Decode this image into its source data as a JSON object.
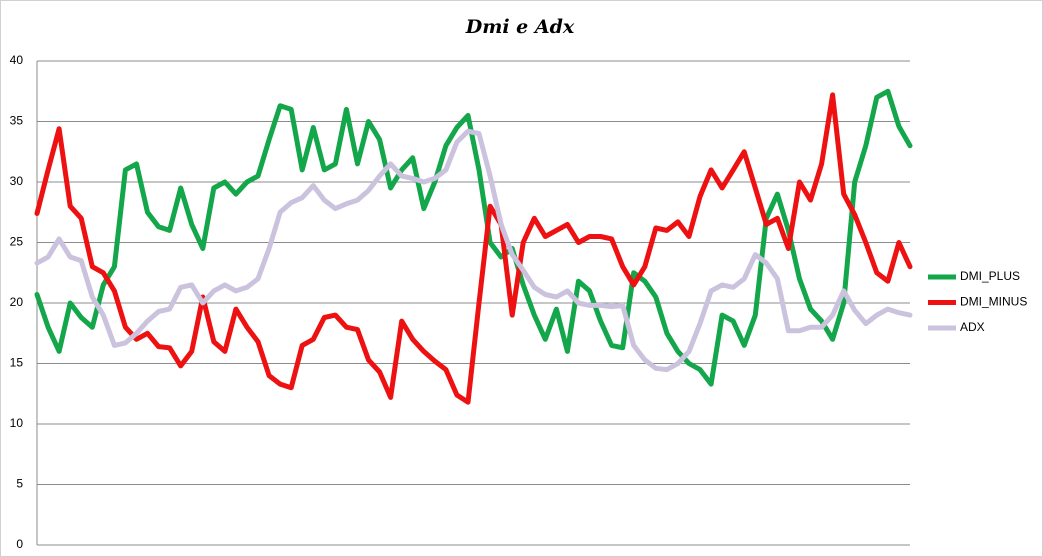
{
  "chart_data": {
    "type": "line",
    "title": "Dmi e Adx",
    "categories": [
      null,
      null,
      null,
      null,
      null,
      null,
      null,
      null,
      null,
      null,
      null,
      null,
      null,
      null,
      null,
      null,
      null,
      null,
      null,
      null,
      null,
      null,
      null,
      null,
      null,
      null,
      null,
      null,
      null,
      null,
      null,
      null,
      null,
      null,
      null,
      null,
      null,
      null,
      null,
      null,
      null,
      null,
      null,
      null,
      null,
      null,
      null,
      null,
      null,
      null,
      null,
      null,
      null,
      null,
      null,
      null,
      null,
      null,
      null,
      null,
      null,
      null,
      null,
      null,
      null,
      null,
      null,
      null,
      null,
      null,
      null,
      null,
      null,
      null,
      null,
      null,
      null,
      null,
      null,
      null
    ],
    "series": [
      {
        "name": "DMI_PLUS",
        "color": "#13a64a",
        "values": [
          20.7,
          18,
          16,
          20,
          18.8,
          18,
          21.5,
          23,
          31,
          31.5,
          27.5,
          26.3,
          26,
          29.5,
          26.5,
          24.5,
          29.5,
          30,
          29,
          30,
          30.5,
          33.5,
          36.3,
          36,
          31,
          34.5,
          31,
          31.5,
          36,
          31.5,
          35,
          33.5,
          29.5,
          31,
          32,
          27.8,
          30,
          33,
          34.5,
          35.5,
          31,
          25,
          23.8,
          24.5,
          21.5,
          19,
          17,
          19.5,
          16,
          21.8,
          21,
          18.5,
          16.5,
          16.3,
          22.5,
          21.8,
          20.5,
          17.5,
          16,
          15,
          14.5,
          13.3,
          19,
          18.5,
          16.5,
          19,
          27,
          29,
          26,
          22,
          19.5,
          18.5,
          17,
          20,
          30,
          33,
          37,
          37.5,
          34.6,
          33
        ]
      },
      {
        "name": "DMI_MINUS",
        "color": "#ee1111",
        "values": [
          27.4,
          31,
          34.4,
          28,
          27,
          23,
          22.5,
          21,
          18,
          17,
          17.5,
          16.4,
          16.3,
          14.8,
          16,
          20.5,
          16.8,
          16,
          19.5,
          18,
          16.8,
          14,
          13.3,
          13,
          16.5,
          17,
          18.8,
          19,
          18,
          17.8,
          15.3,
          14.3,
          12.2,
          18.5,
          17,
          16,
          15.2,
          14.5,
          12.4,
          11.8,
          20,
          28,
          26.5,
          19,
          25,
          27,
          25.5,
          26,
          26.5,
          25,
          25.5,
          25.5,
          25.3,
          23,
          21.5,
          23,
          26.2,
          26,
          26.7,
          25.5,
          28.8,
          31,
          29.5,
          31,
          32.5,
          29.5,
          26.5,
          27,
          24.5,
          30,
          28.5,
          31.5,
          37.2,
          29,
          27.3,
          25,
          22.5,
          21.8,
          25,
          23
        ]
      },
      {
        "name": "ADX",
        "color": "#cbc3de",
        "values": [
          23.3,
          23.8,
          25.3,
          23.8,
          23.5,
          20.5,
          19,
          16.5,
          16.7,
          17.5,
          18.5,
          19.3,
          19.5,
          21.3,
          21.5,
          20,
          21,
          21.5,
          21,
          21.3,
          22,
          24.5,
          27.5,
          28.3,
          28.7,
          29.7,
          28.5,
          27.8,
          28.2,
          28.5,
          29.3,
          30.5,
          31.5,
          30.5,
          30.3,
          30,
          30.3,
          31,
          33.3,
          34.2,
          34,
          30.5,
          26.5,
          24,
          22.7,
          21.3,
          20.7,
          20.5,
          21,
          20,
          19.8,
          19.8,
          19.7,
          19.8,
          16.5,
          15.3,
          14.6,
          14.5,
          15,
          16,
          18.3,
          21,
          21.5,
          21.3,
          22,
          24,
          23.3,
          22,
          17.7,
          17.7,
          18,
          18,
          19,
          21,
          19.4,
          18.3,
          19,
          19.5,
          19.2,
          19
        ]
      }
    ],
    "ylim": [
      0,
      40
    ],
    "yticks": [
      0,
      5,
      10,
      15,
      20,
      25,
      30,
      35,
      40
    ],
    "grid": true,
    "legend": "right"
  }
}
